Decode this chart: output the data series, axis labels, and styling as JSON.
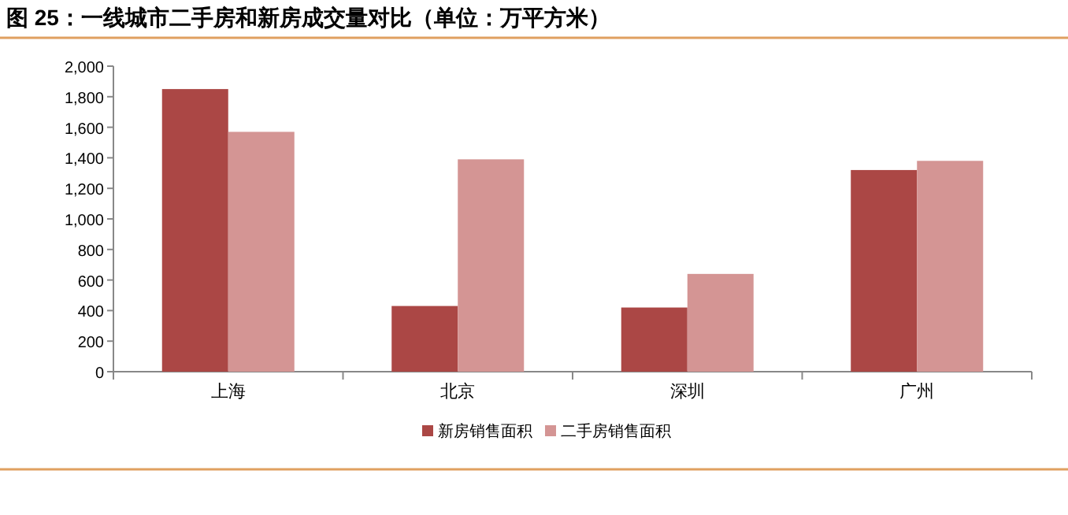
{
  "chart_data": {
    "type": "bar",
    "title": "图 25：一线城市二手房和新房成交量对比（单位：万平方米）",
    "categories": [
      "上海",
      "北京",
      "深圳",
      "广州"
    ],
    "series": [
      {
        "name": "新房销售面积",
        "color": "#ab4745",
        "values": [
          1850,
          430,
          420,
          1320
        ]
      },
      {
        "name": "二手房销售面积",
        "color": "#d49594",
        "values": [
          1570,
          1390,
          640,
          1380
        ]
      }
    ],
    "ylim": [
      0,
      2000
    ],
    "yticks": [
      0,
      200,
      400,
      600,
      800,
      {
        "value": 1000,
        "label": "1,000"
      },
      {
        "value": 1200,
        "label": "1,200"
      },
      {
        "value": 1400,
        "label": "1,400"
      },
      {
        "value": 1600,
        "label": "1,600"
      },
      {
        "value": 1800,
        "label": "1,800"
      },
      {
        "value": 2000,
        "label": "2,000"
      }
    ],
    "legend": "bottom",
    "grid": false
  }
}
